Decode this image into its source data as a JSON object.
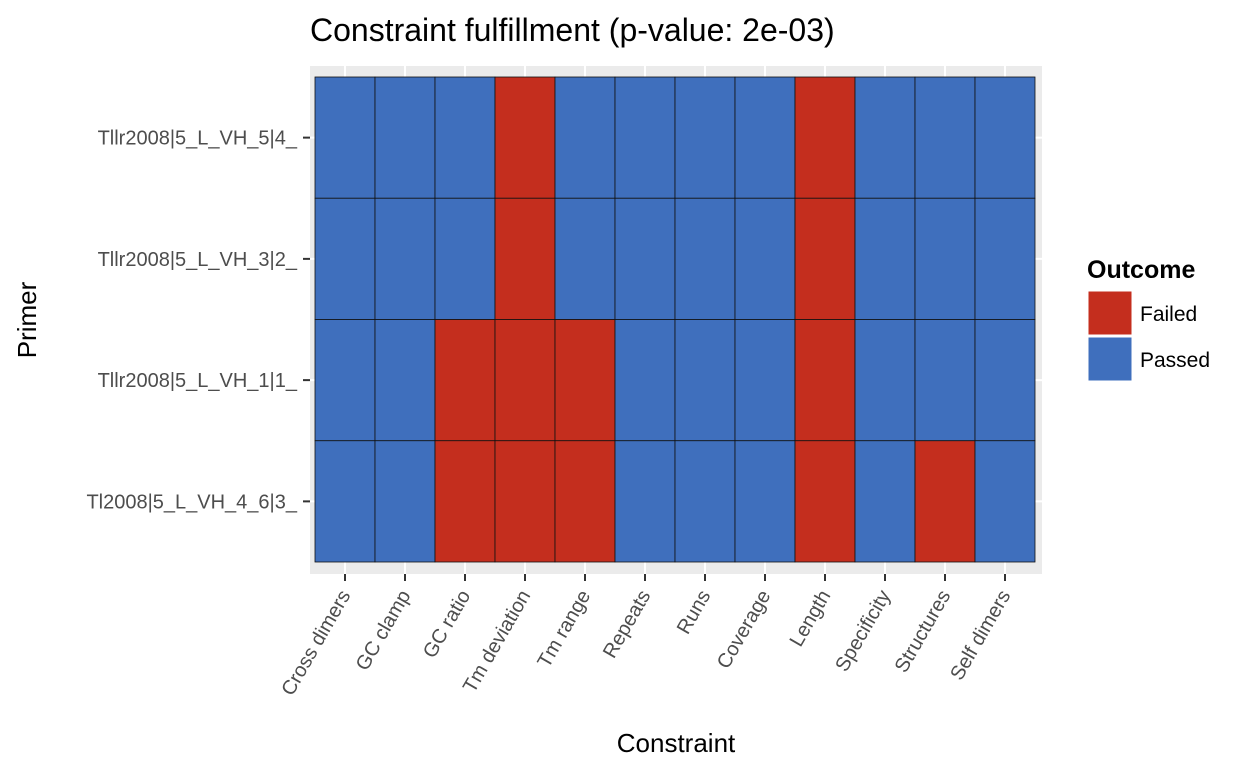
{
  "chart_data": {
    "type": "heatmap",
    "title": "Constraint fulfillment (p-value: 2e-03)",
    "xlabel": "Constraint",
    "ylabel": "Primer",
    "x_categories": [
      "Cross dimers",
      "GC clamp",
      "GC ratio",
      "Tm deviation",
      "Tm range",
      "Repeats",
      "Runs",
      "Coverage",
      "Length",
      "Specificity",
      "Structures",
      "Self dimers"
    ],
    "y_categories": [
      "Tllr2008|5_L_VH_5|4_",
      "Tllr2008|5_L_VH_3|2_",
      "Tllr2008|5_L_VH_1|1_",
      "Tl2008|5_L_VH_4_6|3_"
    ],
    "values": [
      [
        "Passed",
        "Passed",
        "Passed",
        "Failed",
        "Passed",
        "Passed",
        "Passed",
        "Passed",
        "Failed",
        "Passed",
        "Passed",
        "Passed"
      ],
      [
        "Passed",
        "Passed",
        "Passed",
        "Failed",
        "Passed",
        "Passed",
        "Passed",
        "Passed",
        "Failed",
        "Passed",
        "Passed",
        "Passed"
      ],
      [
        "Passed",
        "Passed",
        "Failed",
        "Failed",
        "Failed",
        "Passed",
        "Passed",
        "Passed",
        "Failed",
        "Passed",
        "Passed",
        "Passed"
      ],
      [
        "Passed",
        "Passed",
        "Failed",
        "Failed",
        "Failed",
        "Passed",
        "Passed",
        "Passed",
        "Failed",
        "Passed",
        "Failed",
        "Passed"
      ]
    ],
    "legend": {
      "title": "Outcome",
      "placement": "right",
      "items": [
        {
          "label": "Failed",
          "color": "#c42e1e"
        },
        {
          "label": "Passed",
          "color": "#3f6fbd"
        }
      ]
    },
    "panel_background": "#ebebeb",
    "grid": true
  }
}
